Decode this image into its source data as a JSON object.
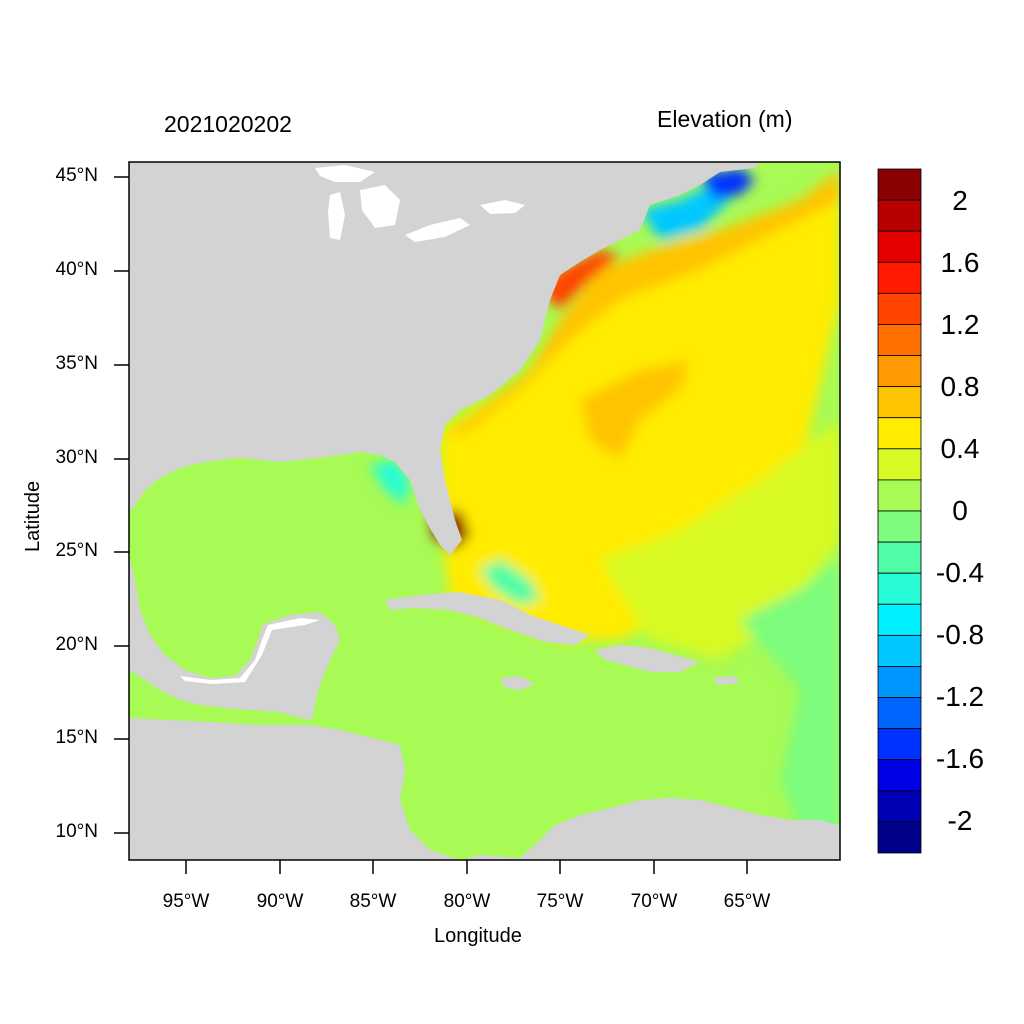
{
  "map": {
    "title_left": "2021020202",
    "title_right": "Elevation (m)",
    "xlabel": "Longitude",
    "ylabel": "Latitude",
    "lat_ticks": [
      "45°N",
      "40°N",
      "35°N",
      "30°N",
      "25°N",
      "20°N",
      "15°N",
      "10°N"
    ],
    "lon_ticks": [
      "95°W",
      "90°W",
      "85°W",
      "80°W",
      "75°W",
      "70°W",
      "65°W"
    ],
    "extent": {
      "lon_min": -98,
      "lon_max": -60,
      "lat_min": 8.5,
      "lat_max": 46
    },
    "land_color": "#d3d3d3",
    "colorbar": {
      "labels": [
        "2",
        "1.6",
        "1.2",
        "0.8",
        "0.4",
        "0",
        "-0.4",
        "-0.8",
        "-1.2",
        "-1.6",
        "-2"
      ],
      "colors": [
        "#8b0000",
        "#b80000",
        "#e60000",
        "#ff1a00",
        "#ff4500",
        "#ff7000",
        "#ff9a00",
        "#ffc400",
        "#ffec00",
        "#d8fa24",
        "#a8fa54",
        "#7dfc7d",
        "#50fca8",
        "#27fcd6",
        "#00f0ff",
        "#00c8ff",
        "#0096ff",
        "#0064ff",
        "#0032ff",
        "#0000e6",
        "#0000b4",
        "#00008b"
      ]
    }
  }
}
